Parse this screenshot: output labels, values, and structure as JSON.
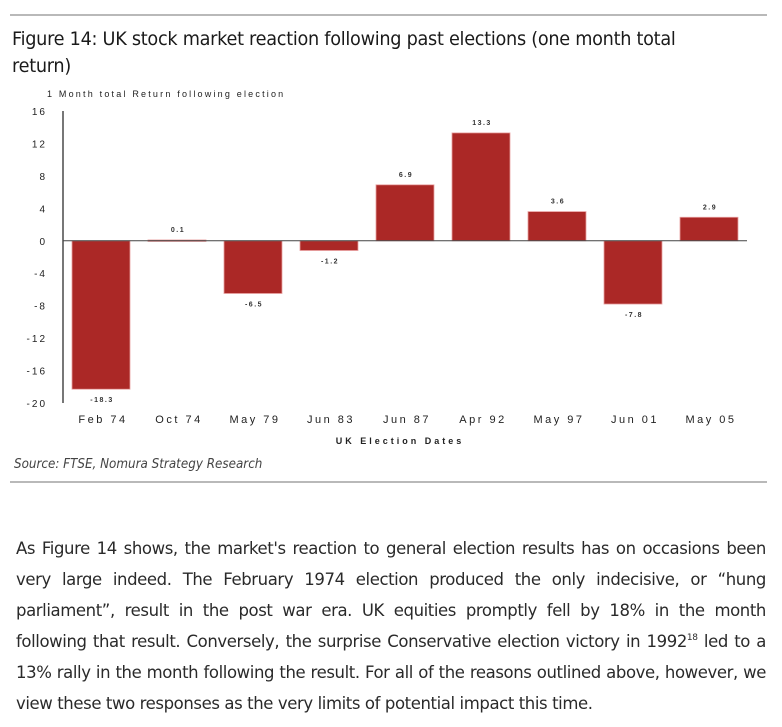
{
  "figure": {
    "title": "Figure 14: UK stock market reaction following past elections (one month total return)",
    "source": "Source: FTSE, Nomura Strategy Research"
  },
  "chart_data": {
    "type": "bar",
    "title": "Figure 14: UK stock market reaction following past elections (one month total return)",
    "ylabel": "1 Month total Return following election",
    "xlabel": "UK Election Dates",
    "categories": [
      "Feb 74",
      "Oct 74",
      "May 79",
      "Jun 83",
      "Jun 87",
      "Apr 92",
      "May 97",
      "Jun 01",
      "May 05"
    ],
    "values": [
      -18.3,
      0.1,
      -6.5,
      -1.2,
      6.9,
      13.3,
      3.6,
      -7.8,
      2.9
    ],
    "value_labels": [
      "-18.3",
      "0.1",
      "-6.5",
      "-1.2",
      "6.9",
      "13.3",
      "3.6",
      "-7.8",
      "2.9"
    ],
    "ylim": [
      -20,
      16
    ],
    "yticks": [
      16,
      12,
      8,
      4,
      0,
      -4,
      -8,
      -12,
      -16,
      -20
    ],
    "ytick_labels": [
      "16",
      "12",
      "8",
      "4",
      "0",
      "-4",
      "-8",
      "-12",
      "-16",
      "-20"
    ],
    "grid": false,
    "legend": "none",
    "bar_color": "#ab2826",
    "bar_edge_color": "#e8a0a0"
  },
  "body": {
    "paragraph_before_sup": "As Figure 14 shows, the market's reaction to general election results has on occasions been very large indeed. The February 1974 election produced the only indecisive, or “hung parliament”, result in the post war era. UK equities promptly fell by 18% in the month following that result. Conversely, the surprise Conservative election victory in 1992",
    "footnote_ref": "18",
    "paragraph_after_sup": " led to a 13% rally in the month following the result. For all of the reasons outlined above, however, we view these two responses as the very limits of potential impact this time."
  }
}
